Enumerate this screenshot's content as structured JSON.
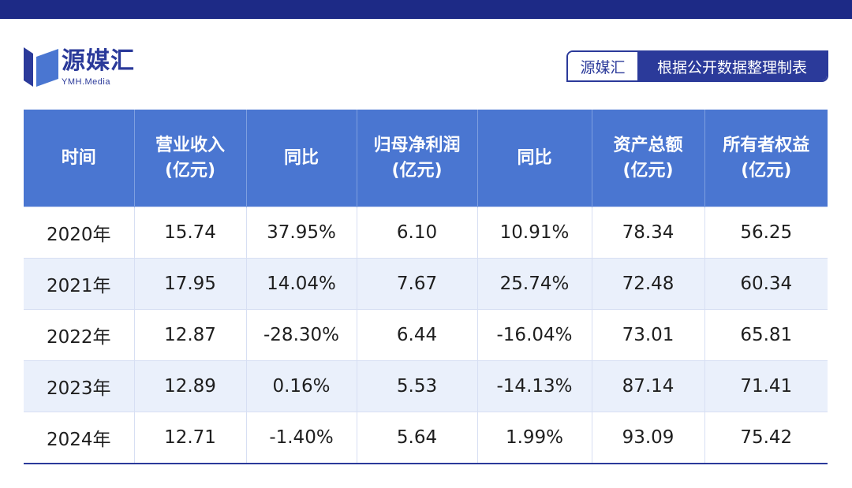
{
  "logo": {
    "name": "源媒汇",
    "sub": "YMH.Media"
  },
  "source_badge": {
    "brand": "源媒汇",
    "desc": "根据公开数据整理制表"
  },
  "colors": {
    "top_bar": "#1d2a86",
    "brand": "#2b3a9a",
    "header_bg": "#4a76d1",
    "alt_row": "#eaf0fb"
  },
  "table": {
    "headers": [
      [
        "时间"
      ],
      [
        "营业收入",
        "(亿元)"
      ],
      [
        "同比"
      ],
      [
        "归母净利润",
        "(亿元)"
      ],
      [
        "同比"
      ],
      [
        "资产总额",
        "(亿元)"
      ],
      [
        "所有者权益",
        "(亿元)"
      ]
    ],
    "rows": [
      [
        "2020年",
        "15.74",
        "37.95%",
        "6.10",
        "10.91%",
        "78.34",
        "56.25"
      ],
      [
        "2021年",
        "17.95",
        "14.04%",
        "7.67",
        "25.74%",
        "72.48",
        "60.34"
      ],
      [
        "2022年",
        "12.87",
        "-28.30%",
        "6.44",
        "-16.04%",
        "73.01",
        "65.81"
      ],
      [
        "2023年",
        "12.89",
        "0.16%",
        "5.53",
        "-14.13%",
        "87.14",
        "71.41"
      ],
      [
        "2024年",
        "12.71",
        "-1.40%",
        "5.64",
        "1.99%",
        "93.09",
        "75.42"
      ]
    ]
  }
}
